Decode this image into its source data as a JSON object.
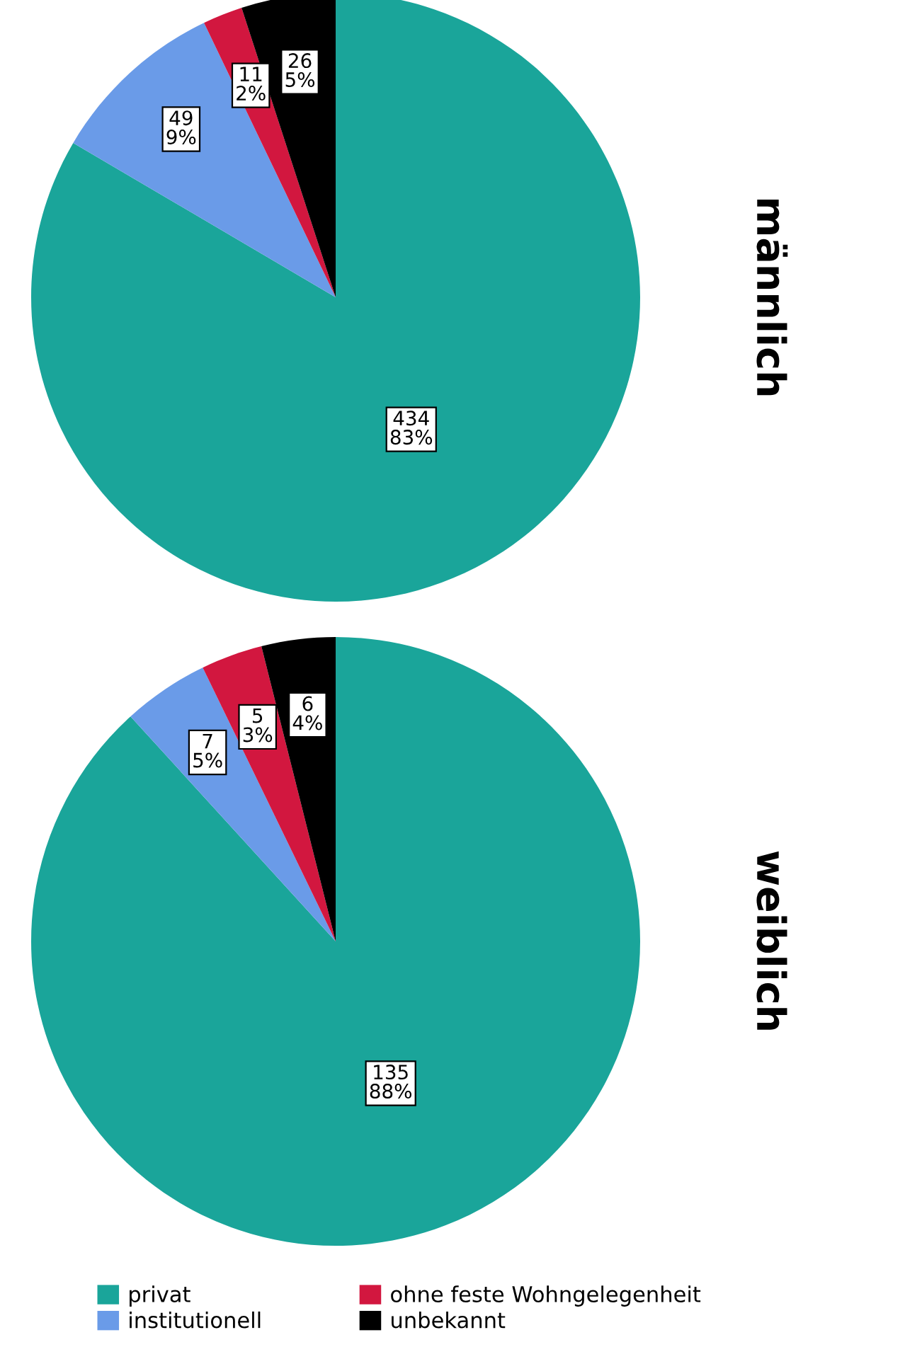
{
  "chart_data": [
    {
      "type": "pie",
      "title": "männlich",
      "categories": [
        "privat",
        "institutionell",
        "ohne feste Wohngelegenheit",
        "unbekannt"
      ],
      "values": [
        434,
        49,
        11,
        26
      ],
      "colors": [
        "#1aa59a",
        "#6a9be8",
        "#d2173f",
        "#000000"
      ],
      "value_labels": [
        "434\n83%",
        "49\n9%",
        "11\n2%",
        "26\n5%"
      ],
      "legend": "bottom"
    },
    {
      "type": "pie",
      "title": "weiblich",
      "categories": [
        null,
        null,
        null,
        null
      ],
      "values": [
        135,
        7,
        5,
        6
      ],
      "colors": [
        "#1aa59a",
        "#6a9be8",
        "#d2173f",
        "#000000"
      ],
      "value_labels": [
        "135\n88%",
        "7\n5%",
        "5\n3%",
        "6\n4%"
      ]
    }
  ]
}
